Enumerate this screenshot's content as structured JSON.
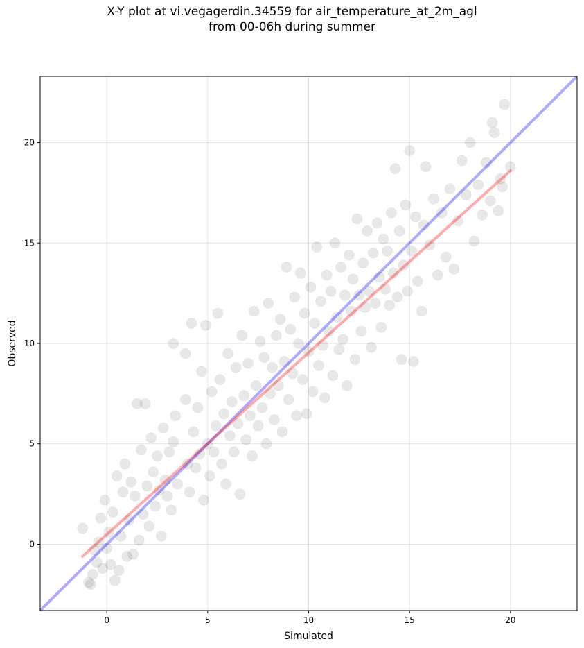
{
  "chart_data": {
    "type": "scatter",
    "title_lines": [
      "X-Y plot at vi.vegagerdin.34559 for air_temperature_at_2m_agl",
      "from 00-06h during summer"
    ],
    "xlabel": "Simulated",
    "ylabel": "Observed",
    "xlim": [
      -3.3,
      23.3
    ],
    "ylim": [
      -3.3,
      23.3
    ],
    "xticks": [
      0,
      5,
      10,
      15,
      20
    ],
    "yticks": [
      0,
      5,
      10,
      15,
      20
    ],
    "grid": true,
    "point_color": "#000000",
    "point_opacity": 0.09,
    "identity_line": {
      "color": "#0000ff",
      "opacity": 0.33,
      "x": [
        -3.3,
        23.3
      ],
      "y": [
        -3.3,
        23.3
      ]
    },
    "fit_line": {
      "color": "#ff0000",
      "opacity": 0.33,
      "x": [
        -1.2,
        20.0
      ],
      "y": [
        -0.6,
        18.6
      ]
    },
    "points": [
      [
        -1.2,
        0.8
      ],
      [
        -0.9,
        -1.9
      ],
      [
        -0.8,
        -2.0
      ],
      [
        -0.7,
        -1.5
      ],
      [
        -0.6,
        -0.3
      ],
      [
        -0.5,
        -0.9
      ],
      [
        -0.4,
        0.1
      ],
      [
        -0.3,
        1.3
      ],
      [
        -0.2,
        -1.2
      ],
      [
        -0.1,
        2.2
      ],
      [
        0.0,
        -0.2
      ],
      [
        0.1,
        0.6
      ],
      [
        0.2,
        -1.0
      ],
      [
        0.3,
        1.6
      ],
      [
        0.4,
        -1.8
      ],
      [
        0.5,
        3.4
      ],
      [
        0.6,
        -1.3
      ],
      [
        0.7,
        0.4
      ],
      [
        0.8,
        2.6
      ],
      [
        0.9,
        4.0
      ],
      [
        1.0,
        -0.6
      ],
      [
        1.1,
        1.2
      ],
      [
        1.2,
        3.1
      ],
      [
        1.3,
        -0.5
      ],
      [
        1.4,
        2.4
      ],
      [
        1.5,
        7.0
      ],
      [
        1.6,
        0.2
      ],
      [
        1.7,
        4.7
      ],
      [
        1.8,
        1.5
      ],
      [
        1.9,
        7.0
      ],
      [
        2.0,
        2.9
      ],
      [
        2.1,
        0.9
      ],
      [
        2.2,
        5.3
      ],
      [
        2.3,
        3.6
      ],
      [
        2.4,
        1.9
      ],
      [
        2.5,
        4.4
      ],
      [
        2.6,
        2.7
      ],
      [
        2.7,
        0.4
      ],
      [
        2.8,
        5.8
      ],
      [
        2.9,
        3.2
      ],
      [
        3.0,
        2.4
      ],
      [
        3.1,
        4.6
      ],
      [
        3.2,
        1.7
      ],
      [
        3.3,
        5.1
      ],
      [
        3.4,
        6.4
      ],
      [
        3.5,
        3.0
      ],
      [
        3.3,
        10.0
      ],
      [
        3.9,
        9.5
      ],
      [
        3.9,
        7.2
      ],
      [
        4.0,
        4.0
      ],
      [
        4.1,
        2.6
      ],
      [
        4.2,
        11.0
      ],
      [
        4.3,
        5.6
      ],
      [
        4.4,
        3.8
      ],
      [
        4.5,
        6.8
      ],
      [
        4.6,
        4.5
      ],
      [
        4.7,
        8.6
      ],
      [
        4.8,
        2.2
      ],
      [
        4.9,
        10.9
      ],
      [
        5.0,
        5.0
      ],
      [
        5.1,
        3.4
      ],
      [
        5.2,
        7.6
      ],
      [
        5.3,
        4.6
      ],
      [
        5.4,
        5.9
      ],
      [
        5.5,
        11.5
      ],
      [
        5.6,
        8.2
      ],
      [
        5.7,
        4.0
      ],
      [
        5.8,
        6.5
      ],
      [
        5.9,
        3.0
      ],
      [
        6.0,
        9.5
      ],
      [
        6.1,
        5.4
      ],
      [
        6.2,
        7.1
      ],
      [
        6.3,
        4.6
      ],
      [
        6.4,
        8.8
      ],
      [
        6.5,
        6.0
      ],
      [
        6.6,
        2.5
      ],
      [
        6.7,
        10.4
      ],
      [
        6.8,
        7.4
      ],
      [
        6.9,
        5.2
      ],
      [
        7.0,
        9.0
      ],
      [
        7.1,
        6.4
      ],
      [
        7.2,
        4.4
      ],
      [
        7.3,
        11.6
      ],
      [
        7.4,
        7.9
      ],
      [
        7.5,
        5.9
      ],
      [
        7.6,
        10.1
      ],
      [
        7.7,
        6.8
      ],
      [
        7.8,
        9.3
      ],
      [
        7.9,
        5.0
      ],
      [
        8.0,
        12.0
      ],
      [
        8.1,
        7.5
      ],
      [
        8.2,
        8.8
      ],
      [
        8.3,
        6.2
      ],
      [
        8.4,
        10.4
      ],
      [
        8.5,
        7.9
      ],
      [
        8.6,
        11.2
      ],
      [
        8.7,
        5.6
      ],
      [
        8.8,
        9.1
      ],
      [
        8.9,
        13.8
      ],
      [
        9.0,
        7.2
      ],
      [
        9.1,
        10.7
      ],
      [
        9.2,
        8.5
      ],
      [
        9.3,
        12.3
      ],
      [
        9.4,
        6.4
      ],
      [
        9.5,
        10.0
      ],
      [
        9.6,
        13.5
      ],
      [
        9.7,
        8.2
      ],
      [
        9.8,
        11.5
      ],
      [
        9.9,
        6.5
      ],
      [
        10.0,
        9.6
      ],
      [
        10.1,
        12.8
      ],
      [
        10.2,
        7.6
      ],
      [
        10.3,
        11.0
      ],
      [
        10.4,
        14.8
      ],
      [
        10.5,
        8.9
      ],
      [
        10.6,
        12.1
      ],
      [
        10.7,
        9.9
      ],
      [
        10.8,
        7.3
      ],
      [
        10.9,
        13.4
      ],
      [
        11.0,
        10.6
      ],
      [
        11.1,
        12.6
      ],
      [
        11.2,
        8.4
      ],
      [
        11.3,
        15.0
      ],
      [
        11.4,
        11.3
      ],
      [
        11.5,
        9.7
      ],
      [
        11.6,
        13.8
      ],
      [
        11.7,
        10.2
      ],
      [
        11.8,
        12.4
      ],
      [
        11.9,
        7.9
      ],
      [
        12.0,
        14.4
      ],
      [
        12.1,
        11.6
      ],
      [
        12.2,
        13.2
      ],
      [
        12.3,
        9.2
      ],
      [
        12.4,
        16.2
      ],
      [
        12.5,
        12.4
      ],
      [
        12.6,
        10.6
      ],
      [
        12.7,
        14.0
      ],
      [
        12.8,
        11.8
      ],
      [
        12.9,
        15.6
      ],
      [
        13.0,
        12.6
      ],
      [
        13.1,
        9.8
      ],
      [
        13.2,
        14.5
      ],
      [
        13.3,
        12.0
      ],
      [
        13.4,
        16.0
      ],
      [
        13.5,
        13.3
      ],
      [
        13.6,
        10.8
      ],
      [
        13.7,
        15.2
      ],
      [
        13.8,
        12.7
      ],
      [
        13.9,
        14.6
      ],
      [
        14.0,
        11.9
      ],
      [
        14.1,
        16.5
      ],
      [
        14.2,
        13.5
      ],
      [
        14.3,
        18.7
      ],
      [
        14.4,
        12.3
      ],
      [
        14.5,
        15.6
      ],
      [
        14.6,
        9.2
      ],
      [
        14.7,
        13.9
      ],
      [
        14.8,
        16.9
      ],
      [
        14.9,
        12.6
      ],
      [
        15.0,
        19.6
      ],
      [
        15.1,
        14.6
      ],
      [
        15.2,
        9.1
      ],
      [
        15.3,
        16.3
      ],
      [
        15.4,
        13.1
      ],
      [
        15.6,
        11.6
      ],
      [
        15.7,
        15.9
      ],
      [
        15.8,
        18.8
      ],
      [
        16.0,
        14.9
      ],
      [
        16.2,
        17.2
      ],
      [
        16.4,
        13.4
      ],
      [
        16.6,
        16.5
      ],
      [
        16.8,
        14.3
      ],
      [
        17.0,
        17.7
      ],
      [
        17.2,
        13.7
      ],
      [
        17.4,
        16.1
      ],
      [
        17.6,
        19.1
      ],
      [
        17.8,
        17.4
      ],
      [
        18.0,
        20.0
      ],
      [
        18.2,
        15.1
      ],
      [
        18.4,
        17.9
      ],
      [
        18.6,
        16.4
      ],
      [
        18.8,
        19.0
      ],
      [
        19.0,
        17.1
      ],
      [
        19.1,
        21.0
      ],
      [
        19.2,
        20.5
      ],
      [
        19.4,
        16.6
      ],
      [
        19.5,
        18.2
      ],
      [
        19.6,
        17.8
      ],
      [
        19.7,
        21.9
      ],
      [
        20.0,
        18.8
      ]
    ]
  }
}
